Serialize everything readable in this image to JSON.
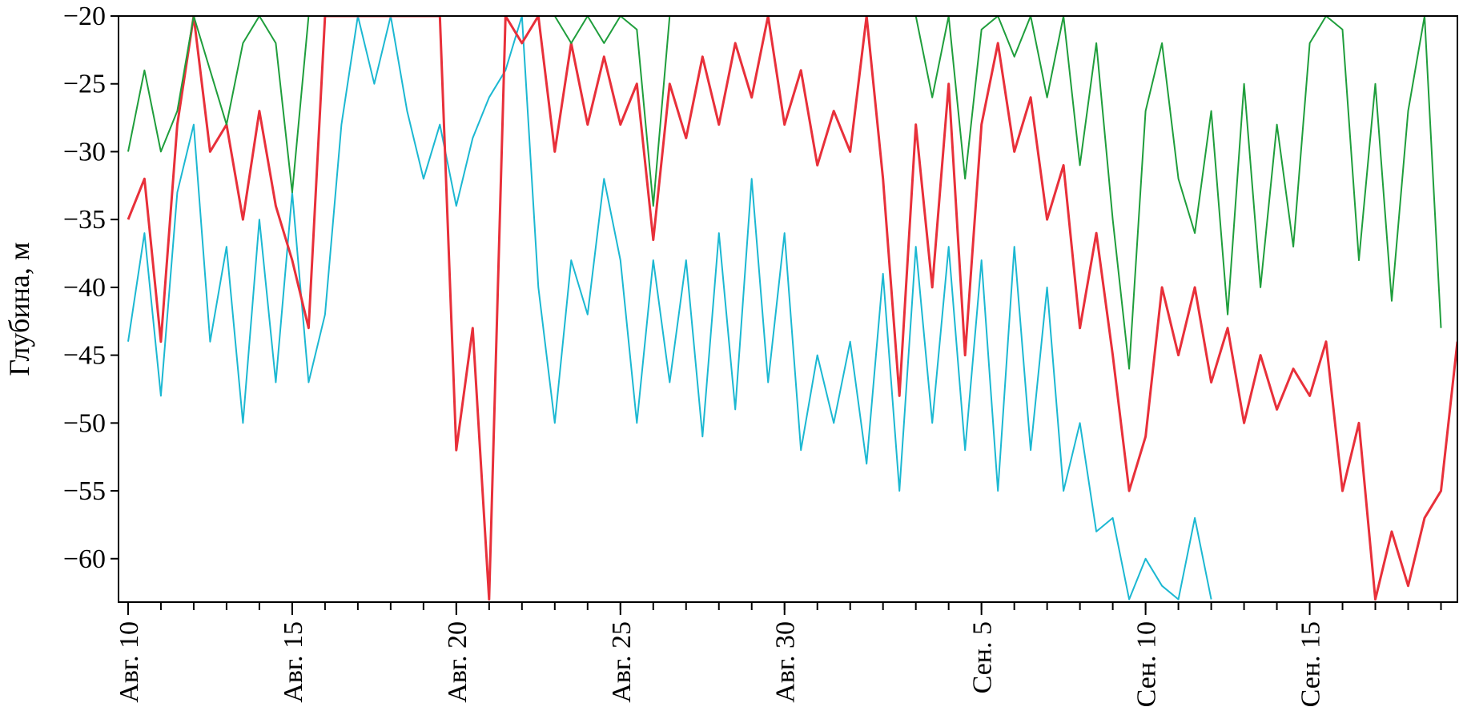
{
  "chart_data": {
    "type": "line",
    "title": "",
    "xlabel": "",
    "ylabel": "Глубина, м",
    "grid": false,
    "legend": "none",
    "x_unit": "date",
    "xlim": [
      "2019-08-09T17:00",
      "2019-09-19T12:00"
    ],
    "ylim": [
      -63.2,
      -20
    ],
    "y_ticks": [
      -20,
      -25,
      -30,
      -35,
      -40,
      -45,
      -50,
      -55,
      -60
    ],
    "x_ticks": [
      {
        "date": "2019-08-10",
        "label": "Авг. 10"
      },
      {
        "date": "2019-08-15",
        "label": "Авг. 15"
      },
      {
        "date": "2019-08-20",
        "label": "Авг. 20"
      },
      {
        "date": "2019-08-25",
        "label": "Авг. 25"
      },
      {
        "date": "2019-08-30",
        "label": "Авг. 30"
      },
      {
        "date": "2019-09-05",
        "label": "Сен. 5"
      },
      {
        "date": "2019-09-10",
        "label": "Сен. 10"
      },
      {
        "date": "2019-09-15",
        "label": "Сен. 15"
      }
    ],
    "series": [
      {
        "color": "#1cb8d2",
        "points": [
          [
            "2019-08-10T00:00",
            -44.0
          ],
          [
            "2019-08-10T12:00",
            -36.0
          ],
          [
            "2019-08-11T00:00",
            -48.0
          ],
          [
            "2019-08-11T12:00",
            -33.0
          ],
          [
            "2019-08-12T00:00",
            -28.0
          ],
          [
            "2019-08-12T12:00",
            -44.0
          ],
          [
            "2019-08-13T00:00",
            -37.0
          ],
          [
            "2019-08-13T12:00",
            -50.0
          ],
          [
            "2019-08-14T00:00",
            -35.0
          ],
          [
            "2019-08-14T12:00",
            -47.0
          ],
          [
            "2019-08-15T00:00",
            -33.0
          ],
          [
            "2019-08-15T12:00",
            -47.0
          ],
          [
            "2019-08-16T00:00",
            -42.0
          ],
          [
            "2019-08-16T12:00",
            -28.0
          ],
          [
            "2019-08-17T00:00",
            -20.0
          ],
          [
            "2019-08-17T12:00",
            -25.0
          ],
          [
            "2019-08-18T00:00",
            -20.0
          ],
          [
            "2019-08-18T12:00",
            -27.0
          ],
          [
            "2019-08-19T00:00",
            -32.0
          ],
          [
            "2019-08-19T12:00",
            -28.0
          ],
          [
            "2019-08-20T00:00",
            -34.0
          ],
          [
            "2019-08-20T12:00",
            -29.0
          ],
          [
            "2019-08-21T00:00",
            -26.0
          ],
          [
            "2019-08-21T12:00",
            -24.0
          ],
          [
            "2019-08-22T00:00",
            -20.0
          ],
          [
            "2019-08-22T12:00",
            -40.0
          ],
          [
            "2019-08-23T00:00",
            -50.0
          ],
          [
            "2019-08-23T12:00",
            -38.0
          ],
          [
            "2019-08-24T00:00",
            -42.0
          ],
          [
            "2019-08-24T12:00",
            -32.0
          ],
          [
            "2019-08-25T00:00",
            -38.0
          ],
          [
            "2019-08-25T12:00",
            -50.0
          ],
          [
            "2019-08-26T00:00",
            -38.0
          ],
          [
            "2019-08-26T12:00",
            -47.0
          ],
          [
            "2019-08-27T00:00",
            -38.0
          ],
          [
            "2019-08-27T12:00",
            -51.0
          ],
          [
            "2019-08-28T00:00",
            -36.0
          ],
          [
            "2019-08-28T12:00",
            -49.0
          ],
          [
            "2019-08-29T00:00",
            -32.0
          ],
          [
            "2019-08-29T12:00",
            -47.0
          ],
          [
            "2019-08-30T00:00",
            -36.0
          ],
          [
            "2019-08-30T12:00",
            -52.0
          ],
          [
            "2019-08-31T00:00",
            -45.0
          ],
          [
            "2019-08-31T12:00",
            -50.0
          ],
          [
            "2019-09-01T00:00",
            -44.0
          ],
          [
            "2019-09-01T12:00",
            -53.0
          ],
          [
            "2019-09-02T00:00",
            -39.0
          ],
          [
            "2019-09-02T12:00",
            -55.0
          ],
          [
            "2019-09-03T00:00",
            -37.0
          ],
          [
            "2019-09-03T12:00",
            -50.0
          ],
          [
            "2019-09-04T00:00",
            -37.0
          ],
          [
            "2019-09-04T12:00",
            -52.0
          ],
          [
            "2019-09-05T00:00",
            -38.0
          ],
          [
            "2019-09-05T12:00",
            -55.0
          ],
          [
            "2019-09-06T00:00",
            -37.0
          ],
          [
            "2019-09-06T12:00",
            -52.0
          ],
          [
            "2019-09-07T00:00",
            -40.0
          ],
          [
            "2019-09-07T12:00",
            -55.0
          ],
          [
            "2019-09-08T00:00",
            -50.0
          ],
          [
            "2019-09-08T12:00",
            -58.0
          ],
          [
            "2019-09-09T00:00",
            -57.0
          ],
          [
            "2019-09-09T12:00",
            -63.0
          ],
          [
            "2019-09-10T00:00",
            -60.0
          ],
          [
            "2019-09-10T12:00",
            -62.0
          ],
          [
            "2019-09-11T00:00",
            -63.0
          ],
          [
            "2019-09-11T12:00",
            -57.0
          ],
          [
            "2019-09-12T00:00",
            -63.0
          ]
        ]
      },
      {
        "color": "#e8303a",
        "points": [
          [
            "2019-08-10T00:00",
            -35.0
          ],
          [
            "2019-08-10T12:00",
            -32.0
          ],
          [
            "2019-08-11T00:00",
            -44.0
          ],
          [
            "2019-08-11T12:00",
            -28.0
          ],
          [
            "2019-08-12T00:00",
            -20.0
          ],
          [
            "2019-08-12T12:00",
            -30.0
          ],
          [
            "2019-08-13T00:00",
            -28.0
          ],
          [
            "2019-08-13T12:00",
            -35.0
          ],
          [
            "2019-08-14T00:00",
            -27.0
          ],
          [
            "2019-08-14T12:00",
            -34.0
          ],
          [
            "2019-08-15T00:00",
            -38.0
          ],
          [
            "2019-08-15T12:00",
            -43.0
          ],
          [
            "2019-08-16T00:00",
            -20.0
          ],
          [
            "2019-08-19T12:00",
            -20.0
          ],
          [
            "2019-08-20T00:00",
            -52.0
          ],
          [
            "2019-08-20T12:00",
            -43.0
          ],
          [
            "2019-08-21T00:00",
            -63.0
          ],
          [
            "2019-08-21T12:00",
            -20.0
          ],
          [
            "2019-08-22T00:00",
            -22.0
          ],
          [
            "2019-08-22T12:00",
            -20.0
          ],
          [
            "2019-08-23T00:00",
            -30.0
          ],
          [
            "2019-08-23T12:00",
            -22.0
          ],
          [
            "2019-08-24T00:00",
            -28.0
          ],
          [
            "2019-08-24T12:00",
            -23.0
          ],
          [
            "2019-08-25T00:00",
            -28.0
          ],
          [
            "2019-08-25T12:00",
            -25.0
          ],
          [
            "2019-08-26T00:00",
            -36.5
          ],
          [
            "2019-08-26T12:00",
            -25.0
          ],
          [
            "2019-08-27T00:00",
            -29.0
          ],
          [
            "2019-08-27T12:00",
            -23.0
          ],
          [
            "2019-08-28T00:00",
            -28.0
          ],
          [
            "2019-08-28T12:00",
            -22.0
          ],
          [
            "2019-08-29T00:00",
            -26.0
          ],
          [
            "2019-08-29T12:00",
            -20.0
          ],
          [
            "2019-08-30T00:00",
            -28.0
          ],
          [
            "2019-08-30T12:00",
            -24.0
          ],
          [
            "2019-08-31T00:00",
            -31.0
          ],
          [
            "2019-08-31T12:00",
            -27.0
          ],
          [
            "2019-09-01T00:00",
            -30.0
          ],
          [
            "2019-09-01T12:00",
            -20.0
          ],
          [
            "2019-09-02T00:00",
            -32.0
          ],
          [
            "2019-09-02T12:00",
            -48.0
          ],
          [
            "2019-09-03T00:00",
            -28.0
          ],
          [
            "2019-09-03T12:00",
            -40.0
          ],
          [
            "2019-09-04T00:00",
            -25.0
          ],
          [
            "2019-09-04T12:00",
            -45.0
          ],
          [
            "2019-09-05T00:00",
            -28.0
          ],
          [
            "2019-09-05T12:00",
            -22.0
          ],
          [
            "2019-09-06T00:00",
            -30.0
          ],
          [
            "2019-09-06T12:00",
            -26.0
          ],
          [
            "2019-09-07T00:00",
            -35.0
          ],
          [
            "2019-09-07T12:00",
            -31.0
          ],
          [
            "2019-09-08T00:00",
            -43.0
          ],
          [
            "2019-09-08T12:00",
            -36.0
          ],
          [
            "2019-09-09T00:00",
            -45.0
          ],
          [
            "2019-09-09T12:00",
            -55.0
          ],
          [
            "2019-09-10T00:00",
            -51.0
          ],
          [
            "2019-09-10T12:00",
            -40.0
          ],
          [
            "2019-09-11T00:00",
            -45.0
          ],
          [
            "2019-09-11T12:00",
            -40.0
          ],
          [
            "2019-09-12T00:00",
            -47.0
          ],
          [
            "2019-09-12T12:00",
            -43.0
          ],
          [
            "2019-09-13T00:00",
            -50.0
          ],
          [
            "2019-09-13T12:00",
            -45.0
          ],
          [
            "2019-09-14T00:00",
            -49.0
          ],
          [
            "2019-09-14T12:00",
            -46.0
          ],
          [
            "2019-09-15T00:00",
            -48.0
          ],
          [
            "2019-09-15T12:00",
            -44.0
          ],
          [
            "2019-09-16T00:00",
            -55.0
          ],
          [
            "2019-09-16T12:00",
            -50.0
          ],
          [
            "2019-09-17T00:00",
            -63.0
          ],
          [
            "2019-09-17T12:00",
            -58.0
          ],
          [
            "2019-09-18T00:00",
            -62.0
          ],
          [
            "2019-09-18T12:00",
            -57.0
          ],
          [
            "2019-09-19T00:00",
            -55.0
          ],
          [
            "2019-09-19T12:00",
            -44.0
          ]
        ]
      },
      {
        "color": "#1f9e3c",
        "points": [
          [
            "2019-08-10T00:00",
            -30.0
          ],
          [
            "2019-08-10T12:00",
            -24.0
          ],
          [
            "2019-08-11T00:00",
            -30.0
          ],
          [
            "2019-08-11T12:00",
            -27.0
          ],
          [
            "2019-08-12T00:00",
            -20.0
          ],
          [
            "2019-08-12T12:00",
            -24.0
          ],
          [
            "2019-08-13T00:00",
            -28.0
          ],
          [
            "2019-08-13T12:00",
            -22.0
          ],
          [
            "2019-08-14T00:00",
            -20.0
          ],
          [
            "2019-08-14T12:00",
            -22.0
          ],
          [
            "2019-08-15T00:00",
            -33.0
          ],
          [
            "2019-08-15T12:00",
            -20.0
          ],
          [
            "2019-08-23T00:00",
            -20.0
          ],
          [
            "2019-08-23T12:00",
            -22.0
          ],
          [
            "2019-08-24T00:00",
            -20.0
          ],
          [
            "2019-08-24T12:00",
            -22.0
          ],
          [
            "2019-08-25T00:00",
            -20.0
          ],
          [
            "2019-08-25T12:00",
            -21.0
          ],
          [
            "2019-08-26T00:00",
            -34.0
          ],
          [
            "2019-08-26T12:00",
            -20.0
          ],
          [
            "2019-09-03T00:00",
            -20.0
          ],
          [
            "2019-09-03T12:00",
            -26.0
          ],
          [
            "2019-09-04T00:00",
            -20.0
          ],
          [
            "2019-09-04T12:00",
            -32.0
          ],
          [
            "2019-09-05T00:00",
            -21.0
          ],
          [
            "2019-09-05T12:00",
            -20.0
          ],
          [
            "2019-09-06T00:00",
            -23.0
          ],
          [
            "2019-09-06T12:00",
            -20.0
          ],
          [
            "2019-09-07T00:00",
            -26.0
          ],
          [
            "2019-09-07T12:00",
            -20.0
          ],
          [
            "2019-09-08T00:00",
            -31.0
          ],
          [
            "2019-09-08T12:00",
            -22.0
          ],
          [
            "2019-09-09T00:00",
            -35.0
          ],
          [
            "2019-09-09T12:00",
            -46.0
          ],
          [
            "2019-09-10T00:00",
            -27.0
          ],
          [
            "2019-09-10T12:00",
            -22.0
          ],
          [
            "2019-09-11T00:00",
            -32.0
          ],
          [
            "2019-09-11T12:00",
            -36.0
          ],
          [
            "2019-09-12T00:00",
            -27.0
          ],
          [
            "2019-09-12T12:00",
            -42.0
          ],
          [
            "2019-09-13T00:00",
            -25.0
          ],
          [
            "2019-09-13T12:00",
            -40.0
          ],
          [
            "2019-09-14T00:00",
            -28.0
          ],
          [
            "2019-09-14T12:00",
            -37.0
          ],
          [
            "2019-09-15T00:00",
            -22.0
          ],
          [
            "2019-09-15T12:00",
            -20.0
          ],
          [
            "2019-09-16T00:00",
            -21.0
          ],
          [
            "2019-09-16T12:00",
            -38.0
          ],
          [
            "2019-09-17T00:00",
            -25.0
          ],
          [
            "2019-09-17T12:00",
            -41.0
          ],
          [
            "2019-09-18T00:00",
            -27.0
          ],
          [
            "2019-09-18T12:00",
            -20.0
          ],
          [
            "2019-09-19T00:00",
            -43.0
          ]
        ]
      }
    ]
  }
}
